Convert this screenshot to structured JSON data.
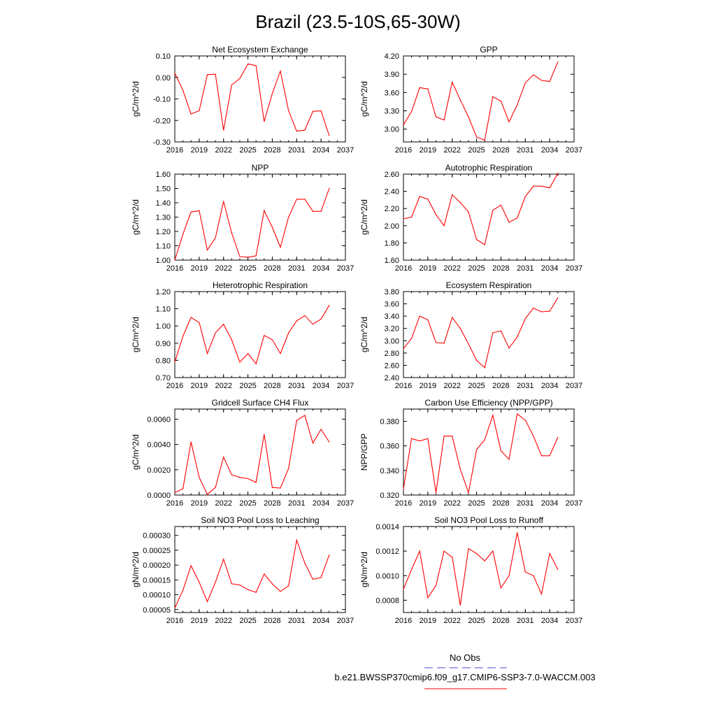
{
  "title": "Brazil (23.5-10S,65-30W)",
  "legend": {
    "entries": [
      {
        "label": "No Obs",
        "color": "#4a4ad8",
        "dash": "dashed"
      },
      {
        "label": "b.e21.BWSSP370cmip6.f09_g17.CMIP6-SSP3-7.0-WACCM.003",
        "color": "#ff0000",
        "dash": "solid"
      }
    ]
  },
  "chart_data": [
    {
      "type": "line",
      "title": "Net Ecosystem Exchange",
      "ylabel": "gC/m^2/d",
      "xlim": [
        2016,
        2037
      ],
      "ylim": [
        -0.3,
        0.1
      ],
      "xticks": [
        "2016",
        "2019",
        "2022",
        "2025",
        "2028",
        "2031",
        "2034",
        "2037"
      ],
      "yticks": [
        "-0.30",
        "-0.20",
        "-0.10",
        "0.00",
        "0.10"
      ],
      "x": [
        2016,
        2017,
        2018,
        2019,
        2020,
        2021,
        2022,
        2023,
        2024,
        2025,
        2026,
        2027,
        2028,
        2029,
        2030,
        2031,
        2032,
        2033,
        2034,
        2035
      ],
      "series": [
        {
          "name": "b.e21.BWSSP370cmip6.f09_g17.CMIP6-SSP3-7.0-WACCM.003",
          "color": "#ff0000",
          "values": [
            0.02,
            -0.06,
            -0.17,
            -0.155,
            0.013,
            0.015,
            -0.245,
            -0.035,
            -0.005,
            0.063,
            0.055,
            -0.205,
            -0.075,
            0.03,
            -0.155,
            -0.25,
            -0.245,
            -0.158,
            -0.155,
            -0.27
          ]
        }
      ]
    },
    {
      "type": "line",
      "title": "GPP",
      "ylabel": "gC/m^2/d",
      "xlim": [
        2016,
        2037
      ],
      "ylim": [
        2.79,
        4.2
      ],
      "xticks": [
        "2016",
        "2019",
        "2022",
        "2025",
        "2028",
        "2031",
        "2034",
        "2037"
      ],
      "yticks": [
        "3.00",
        "3.30",
        "3.60",
        "3.90",
        "4.20"
      ],
      "x": [
        2016,
        2017,
        2018,
        2019,
        2020,
        2021,
        2022,
        2023,
        2024,
        2025,
        2026,
        2027,
        2028,
        2029,
        2030,
        2031,
        2032,
        2033,
        2034,
        2035
      ],
      "series": [
        {
          "name": "b.e21.BWSSP370cmip6.f09_g17.CMIP6-SSP3-7.0-WACCM.003",
          "color": "#ff0000",
          "values": [
            3.07,
            3.29,
            3.68,
            3.66,
            3.2,
            3.15,
            3.77,
            3.48,
            3.2,
            2.87,
            2.82,
            3.53,
            3.46,
            3.12,
            3.4,
            3.76,
            3.89,
            3.8,
            3.78,
            4.1
          ]
        }
      ]
    },
    {
      "type": "line",
      "title": "NPP",
      "ylabel": "gC/m^2/d",
      "xlim": [
        2016,
        2037
      ],
      "ylim": [
        1.0,
        1.6
      ],
      "xticks": [
        "2016",
        "2019",
        "2022",
        "2025",
        "2028",
        "2031",
        "2034",
        "2037"
      ],
      "yticks": [
        "1.00",
        "1.10",
        "1.20",
        "1.30",
        "1.40",
        "1.50",
        "1.60"
      ],
      "x": [
        2016,
        2017,
        2018,
        2019,
        2020,
        2021,
        2022,
        2023,
        2024,
        2025,
        2026,
        2027,
        2028,
        2029,
        2030,
        2031,
        2032,
        2033,
        2034,
        2035
      ],
      "series": [
        {
          "name": "b.e21.BWSSP370cmip6.f09_g17.CMIP6-SSP3-7.0-WACCM.003",
          "color": "#ff0000",
          "values": [
            1.0,
            1.18,
            1.335,
            1.345,
            1.07,
            1.155,
            1.41,
            1.19,
            1.025,
            1.02,
            1.03,
            1.345,
            1.23,
            1.09,
            1.3,
            1.425,
            1.425,
            1.34,
            1.34,
            1.5
          ]
        }
      ]
    },
    {
      "type": "line",
      "title": "Autotrophic Respiration",
      "ylabel": "gC/m^2/d",
      "xlim": [
        2016,
        2037
      ],
      "ylim": [
        1.6,
        2.6
      ],
      "xticks": [
        "2016",
        "2019",
        "2022",
        "2025",
        "2028",
        "2031",
        "2034",
        "2037"
      ],
      "yticks": [
        "1.60",
        "1.80",
        "2.00",
        "2.20",
        "2.40",
        "2.60"
      ],
      "x": [
        2016,
        2017,
        2018,
        2019,
        2020,
        2021,
        2022,
        2023,
        2024,
        2025,
        2026,
        2027,
        2028,
        2029,
        2030,
        2031,
        2032,
        2033,
        2034,
        2035
      ],
      "series": [
        {
          "name": "b.e21.BWSSP370cmip6.f09_g17.CMIP6-SSP3-7.0-WACCM.003",
          "color": "#ff0000",
          "values": [
            2.08,
            2.1,
            2.34,
            2.31,
            2.13,
            2.0,
            2.36,
            2.27,
            2.16,
            1.84,
            1.78,
            2.18,
            2.24,
            2.04,
            2.09,
            2.34,
            2.46,
            2.46,
            2.44,
            2.61
          ]
        }
      ]
    },
    {
      "type": "line",
      "title": "Heterotrophic Respiration",
      "ylabel": "gC/m^2/d",
      "xlim": [
        2016,
        2037
      ],
      "ylim": [
        0.7,
        1.2
      ],
      "xticks": [
        "2016",
        "2019",
        "2022",
        "2025",
        "2028",
        "2031",
        "2034",
        "2037"
      ],
      "yticks": [
        "0.70",
        "0.80",
        "0.90",
        "1.00",
        "1.10",
        "1.20"
      ],
      "x": [
        2016,
        2017,
        2018,
        2019,
        2020,
        2021,
        2022,
        2023,
        2024,
        2025,
        2026,
        2027,
        2028,
        2029,
        2030,
        2031,
        2032,
        2033,
        2034,
        2035
      ],
      "series": [
        {
          "name": "b.e21.BWSSP370cmip6.f09_g17.CMIP6-SSP3-7.0-WACCM.003",
          "color": "#ff0000",
          "values": [
            0.79,
            0.94,
            1.05,
            1.02,
            0.84,
            0.96,
            1.01,
            0.92,
            0.79,
            0.84,
            0.78,
            0.945,
            0.92,
            0.84,
            0.96,
            1.03,
            1.06,
            1.01,
            1.04,
            1.12
          ]
        }
      ]
    },
    {
      "type": "line",
      "title": "Ecosystem Respiration",
      "ylabel": "gC/m^2/d",
      "xlim": [
        2016,
        2037
      ],
      "ylim": [
        2.4,
        3.8
      ],
      "xticks": [
        "2016",
        "2019",
        "2022",
        "2025",
        "2028",
        "2031",
        "2034",
        "2037"
      ],
      "yticks": [
        "2.40",
        "2.60",
        "2.80",
        "3.00",
        "3.20",
        "3.40",
        "3.60",
        "3.80"
      ],
      "x": [
        2016,
        2017,
        2018,
        2019,
        2020,
        2021,
        2022,
        2023,
        2024,
        2025,
        2026,
        2027,
        2028,
        2029,
        2030,
        2031,
        2032,
        2033,
        2034,
        2035
      ],
      "series": [
        {
          "name": "b.e21.BWSSP370cmip6.f09_g17.CMIP6-SSP3-7.0-WACCM.003",
          "color": "#ff0000",
          "values": [
            2.87,
            3.04,
            3.4,
            3.34,
            2.97,
            2.96,
            3.38,
            3.2,
            2.95,
            2.68,
            2.56,
            3.13,
            3.16,
            2.88,
            3.06,
            3.36,
            3.53,
            3.47,
            3.48,
            3.7
          ]
        }
      ]
    },
    {
      "type": "line",
      "title": "Gridcell Surface CH4 Flux",
      "ylabel": "gC/m^2/d",
      "xlim": [
        2016,
        2037
      ],
      "ylim": [
        0.0,
        0.0068
      ],
      "xticks": [
        "2016",
        "2019",
        "2022",
        "2025",
        "2028",
        "2031",
        "2034",
        "2037"
      ],
      "yticks": [
        "0.0000",
        "0.0020",
        "0.0040",
        "0.0060"
      ],
      "x": [
        2016,
        2017,
        2018,
        2019,
        2020,
        2021,
        2022,
        2023,
        2024,
        2025,
        2026,
        2027,
        2028,
        2029,
        2030,
        2031,
        2032,
        2033,
        2034,
        2035
      ],
      "series": [
        {
          "name": "b.e21.BWSSP370cmip6.f09_g17.CMIP6-SSP3-7.0-WACCM.003",
          "color": "#ff0000",
          "values": [
            0.0002,
            0.0005,
            0.0042,
            0.0014,
            5e-05,
            0.0006,
            0.003,
            0.0016,
            0.0014,
            0.0013,
            0.001,
            0.0048,
            0.0006,
            0.00055,
            0.0021,
            0.0059,
            0.0063,
            0.0041,
            0.0052,
            0.0042
          ]
        }
      ]
    },
    {
      "type": "line",
      "title": "Carbon Use Efficiency (NPP/GPP)",
      "ylabel": "NPP/GPP",
      "xlim": [
        2016,
        2037
      ],
      "ylim": [
        0.32,
        0.39
      ],
      "xticks": [
        "2016",
        "2019",
        "2022",
        "2025",
        "2028",
        "2031",
        "2034",
        "2037"
      ],
      "yticks": [
        "0.320",
        "0.340",
        "0.360",
        "0.380"
      ],
      "x": [
        2016,
        2017,
        2018,
        2019,
        2020,
        2021,
        2022,
        2023,
        2024,
        2025,
        2026,
        2027,
        2028,
        2029,
        2030,
        2031,
        2032,
        2033,
        2034,
        2035
      ],
      "series": [
        {
          "name": "b.e21.BWSSP370cmip6.f09_g17.CMIP6-SSP3-7.0-WACCM.003",
          "color": "#ff0000",
          "values": [
            0.325,
            0.366,
            0.364,
            0.366,
            0.322,
            0.368,
            0.368,
            0.341,
            0.322,
            0.357,
            0.365,
            0.385,
            0.356,
            0.349,
            0.386,
            0.381,
            0.368,
            0.352,
            0.352,
            0.367
          ]
        }
      ]
    },
    {
      "type": "line",
      "title": "Soil NO3 Pool Loss to Leaching",
      "ylabel": "gN/m^2/d",
      "xlim": [
        2016,
        2037
      ],
      "ylim": [
        4e-05,
        0.00033
      ],
      "xticks": [
        "2016",
        "2019",
        "2022",
        "2025",
        "2028",
        "2031",
        "2034",
        "2037"
      ],
      "yticks": [
        "0.00005",
        "0.00010",
        "0.00015",
        "0.00020",
        "0.00025",
        "0.00030"
      ],
      "x": [
        2016,
        2017,
        2018,
        2019,
        2020,
        2021,
        2022,
        2023,
        2024,
        2025,
        2026,
        2027,
        2028,
        2029,
        2030,
        2031,
        2032,
        2033,
        2034,
        2035
      ],
      "series": [
        {
          "name": "b.e21.BWSSP370cmip6.f09_g17.CMIP6-SSP3-7.0-WACCM.003",
          "color": "#ff0000",
          "values": [
            5.5e-05,
            0.000115,
            0.000198,
            0.000142,
            7.7e-05,
            0.000142,
            0.00022,
            0.000137,
            0.000133,
            0.000117,
            0.000108,
            0.00017,
            0.000137,
            0.000111,
            0.00013,
            0.000284,
            0.000207,
            0.000152,
            0.000158,
            0.000234
          ]
        }
      ]
    },
    {
      "type": "line",
      "title": "Soil NO3 Pool Loss to Runoff",
      "ylabel": "gN/m^2/d",
      "xlim": [
        2016,
        2037
      ],
      "ylim": [
        0.0007,
        0.0014
      ],
      "xticks": [
        "2016",
        "2019",
        "2022",
        "2025",
        "2028",
        "2031",
        "2034",
        "2037"
      ],
      "yticks": [
        "0.0008",
        "0.0010",
        "0.0012",
        "0.0014"
      ],
      "x": [
        2016,
        2017,
        2018,
        2019,
        2020,
        2021,
        2022,
        2023,
        2024,
        2025,
        2026,
        2027,
        2028,
        2029,
        2030,
        2031,
        2032,
        2033,
        2034,
        2035
      ],
      "series": [
        {
          "name": "b.e21.BWSSP370cmip6.f09_g17.CMIP6-SSP3-7.0-WACCM.003",
          "color": "#ff0000",
          "values": [
            0.00089,
            0.00105,
            0.0012,
            0.00082,
            0.00092,
            0.0012,
            0.00115,
            0.00076,
            0.00122,
            0.00118,
            0.00112,
            0.0012,
            0.0009,
            0.001,
            0.00135,
            0.00103,
            0.001,
            0.00085,
            0.00118,
            0.00105
          ]
        }
      ]
    }
  ]
}
